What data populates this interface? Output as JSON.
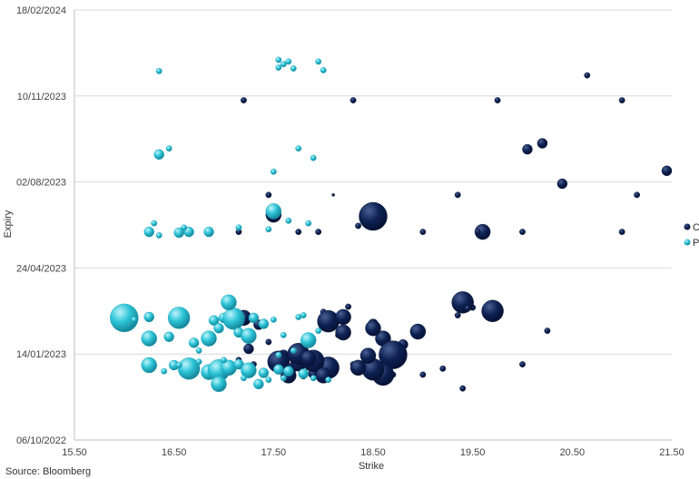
{
  "chart_data": {
    "type": "scatter",
    "xlabel": "Strike",
    "ylabel": "Expiry",
    "xlim": [
      15.5,
      21.5
    ],
    "x_ticks": [
      "15.50",
      "16.50",
      "17.50",
      "18.50",
      "19.50",
      "20.50",
      "21.50"
    ],
    "y_ticks": [
      "06/10/2022",
      "14/01/2023",
      "24/04/2023",
      "02/08/2023",
      "10/11/2023",
      "18/02/2024"
    ],
    "grid": "horizontal",
    "legend_position": "right",
    "colors": {
      "C": "#0d2152",
      "P": "#2ec5d8"
    },
    "series": [
      {
        "name": "C",
        "points": [
          {
            "x": 17.15,
            "y": "07/01/2023",
            "size": 2
          },
          {
            "x": 17.25,
            "y": "20/01/2023",
            "size": 3
          },
          {
            "x": 17.3,
            "y": "02/01/2023",
            "size": 2
          },
          {
            "x": 17.35,
            "y": "17/02/2023",
            "size": 3
          },
          {
            "x": 17.45,
            "y": "28/01/2023",
            "size": 2
          },
          {
            "x": 17.5,
            "y": "12/01/2023",
            "size": 2
          },
          {
            "x": 17.55,
            "y": "30/12/2022",
            "size": 2
          },
          {
            "x": 17.6,
            "y": "13/01/2023",
            "size": 3
          },
          {
            "x": 17.7,
            "y": "30/12/2022",
            "size": 3
          },
          {
            "x": 17.75,
            "y": "03/01/2023",
            "size": 4
          },
          {
            "x": 17.8,
            "y": "19/12/2022",
            "size": 2
          },
          {
            "x": 17.8,
            "y": "07/01/2023",
            "size": 3
          },
          {
            "x": 17.85,
            "y": "31/12/2022",
            "size": 2
          },
          {
            "x": 17.9,
            "y": "22/12/2022",
            "size": 3
          },
          {
            "x": 17.95,
            "y": "25/12/2022",
            "size": 2
          },
          {
            "x": 18.0,
            "y": "04/03/2023",
            "size": 2
          },
          {
            "x": 18.05,
            "y": "26/12/2022",
            "size": 3
          },
          {
            "x": 18.1,
            "y": "15/02/2023",
            "size": 2
          },
          {
            "x": 18.15,
            "y": "05/02/2023",
            "size": 2
          },
          {
            "x": 18.25,
            "y": "10/03/2023",
            "size": 2
          },
          {
            "x": 18.3,
            "y": "02/01/2023",
            "size": 2
          },
          {
            "x": 18.4,
            "y": "03/01/2023",
            "size": 2
          },
          {
            "x": 18.45,
            "y": "25/12/2022",
            "size": 3
          },
          {
            "x": 18.5,
            "y": "18/02/2023",
            "size": 3
          },
          {
            "x": 18.6,
            "y": "01/02/2023",
            "size": 4
          },
          {
            "x": 18.65,
            "y": "02/01/2023",
            "size": 2
          },
          {
            "x": 18.7,
            "y": "21/12/2022",
            "size": 2
          },
          {
            "x": 18.75,
            "y": "16/01/2023",
            "size": 2
          },
          {
            "x": 18.8,
            "y": "25/01/2023",
            "size": 3
          },
          {
            "x": 19.0,
            "y": "21/12/2022",
            "size": 2
          },
          {
            "x": 19.2,
            "y": "28/12/2022",
            "size": 2
          },
          {
            "x": 19.35,
            "y": "28/02/2023",
            "size": 2
          },
          {
            "x": 19.4,
            "y": "05/12/2022",
            "size": 2
          },
          {
            "x": 19.5,
            "y": "09/03/2023",
            "size": 2
          },
          {
            "x": 20.0,
            "y": "02/01/2023",
            "size": 2
          },
          {
            "x": 20.25,
            "y": "10/02/2023",
            "size": 2
          },
          {
            "x": 17.55,
            "y": "05/01/2023",
            "size": 5
          },
          {
            "x": 17.75,
            "y": "14/01/2023",
            "size": 5
          },
          {
            "x": 18.05,
            "y": "21/02/2023",
            "size": 5
          },
          {
            "x": 18.7,
            "y": "13/01/2023",
            "size": 6
          },
          {
            "x": 18.6,
            "y": "21/12/2022",
            "size": 5
          },
          {
            "x": 18.05,
            "y": "29/12/2022",
            "size": 5
          },
          {
            "x": 17.9,
            "y": "06/01/2023",
            "size": 5
          },
          {
            "x": 17.2,
            "y": "25/02/2023",
            "size": 4
          },
          {
            "x": 18.5,
            "y": "27/12/2022",
            "size": 5
          },
          {
            "x": 18.45,
            "y": "12/01/2023",
            "size": 4
          },
          {
            "x": 18.95,
            "y": "09/02/2023",
            "size": 4
          },
          {
            "x": 18.2,
            "y": "26/02/2023",
            "size": 4
          },
          {
            "x": 18.2,
            "y": "08/02/2023",
            "size": 4
          },
          {
            "x": 18.0,
            "y": "20/12/2022",
            "size": 4
          },
          {
            "x": 17.65,
            "y": "20/12/2022",
            "size": 4
          },
          {
            "x": 17.85,
            "y": "09/01/2023",
            "size": 4
          },
          {
            "x": 18.35,
            "y": "29/12/2022",
            "size": 4
          },
          {
            "x": 18.5,
            "y": "13/02/2023",
            "size": 4
          },
          {
            "x": 19.4,
            "y": "15/03/2023",
            "size": 5
          },
          {
            "x": 19.7,
            "y": "05/03/2023",
            "size": 5
          },
          {
            "x": 19.45,
            "y": "08/03/2023",
            "size": 2
          },
          {
            "x": 18.5,
            "y": "23/06/2023",
            "size": 6
          },
          {
            "x": 17.5,
            "y": "25/06/2023",
            "size": 4
          },
          {
            "x": 19.6,
            "y": "05/06/2023",
            "size": 4
          },
          {
            "x": 18.35,
            "y": "12/06/2023",
            "size": 2
          },
          {
            "x": 17.15,
            "y": "05/06/2023",
            "size": 2
          },
          {
            "x": 17.75,
            "y": "05/06/2023",
            "size": 2
          },
          {
            "x": 17.95,
            "y": "05/06/2023",
            "size": 2
          },
          {
            "x": 19.0,
            "y": "05/06/2023",
            "size": 2
          },
          {
            "x": 19.55,
            "y": "05/06/2023",
            "size": 2
          },
          {
            "x": 20.0,
            "y": "05/06/2023",
            "size": 2
          },
          {
            "x": 21.0,
            "y": "05/06/2023",
            "size": 2
          },
          {
            "x": 17.45,
            "y": "18/07/2023",
            "size": 2
          },
          {
            "x": 18.1,
            "y": "18/07/2023",
            "size": 1
          },
          {
            "x": 19.35,
            "y": "18/07/2023",
            "size": 2
          },
          {
            "x": 21.15,
            "y": "18/07/2023",
            "size": 2
          },
          {
            "x": 20.4,
            "y": "31/07/2023",
            "size": 3
          },
          {
            "x": 21.45,
            "y": "15/08/2023",
            "size": 3
          },
          {
            "x": 20.05,
            "y": "09/09/2023",
            "size": 3
          },
          {
            "x": 20.2,
            "y": "16/09/2023",
            "size": 3
          },
          {
            "x": 17.2,
            "y": "05/11/2023",
            "size": 2
          },
          {
            "x": 18.3,
            "y": "05/11/2023",
            "size": 2
          },
          {
            "x": 19.75,
            "y": "05/11/2023",
            "size": 2
          },
          {
            "x": 21.0,
            "y": "05/11/2023",
            "size": 2
          },
          {
            "x": 20.65,
            "y": "04/12/2023",
            "size": 2
          }
        ]
      },
      {
        "name": "P",
        "points": [
          {
            "x": 16.0,
            "y": "25/02/2023",
            "size": 6
          },
          {
            "x": 16.25,
            "y": "26/02/2023",
            "size": 3
          },
          {
            "x": 16.55,
            "y": "25/02/2023",
            "size": 5
          },
          {
            "x": 16.9,
            "y": "22/02/2023",
            "size": 3
          },
          {
            "x": 17.0,
            "y": "25/02/2023",
            "size": 3
          },
          {
            "x": 17.1,
            "y": "24/02/2023",
            "size": 5
          },
          {
            "x": 17.3,
            "y": "25/02/2023",
            "size": 3
          },
          {
            "x": 17.5,
            "y": "23/02/2023",
            "size": 2
          },
          {
            "x": 17.75,
            "y": "26/02/2023",
            "size": 2
          },
          {
            "x": 17.05,
            "y": "15/03/2023",
            "size": 4
          },
          {
            "x": 16.1,
            "y": "23/02/2023",
            "size": 2
          },
          {
            "x": 16.25,
            "y": "01/02/2023",
            "size": 4
          },
          {
            "x": 16.45,
            "y": "03/02/2023",
            "size": 3
          },
          {
            "x": 16.85,
            "y": "01/02/2023",
            "size": 4
          },
          {
            "x": 16.95,
            "y": "13/02/2023",
            "size": 3
          },
          {
            "x": 17.15,
            "y": "08/02/2023",
            "size": 3
          },
          {
            "x": 17.25,
            "y": "04/02/2023",
            "size": 4
          },
          {
            "x": 17.4,
            "y": "18/02/2023",
            "size": 3
          },
          {
            "x": 17.6,
            "y": "05/02/2023",
            "size": 2
          },
          {
            "x": 17.8,
            "y": "28/02/2023",
            "size": 2
          },
          {
            "x": 16.7,
            "y": "27/01/2023",
            "size": 3
          },
          {
            "x": 17.95,
            "y": "10/02/2023",
            "size": 2
          },
          {
            "x": 17.85,
            "y": "30/01/2023",
            "size": 4
          },
          {
            "x": 16.25,
            "y": "01/01/2023",
            "size": 4
          },
          {
            "x": 16.5,
            "y": "01/01/2023",
            "size": 3
          },
          {
            "x": 16.65,
            "y": "28/12/2022",
            "size": 5
          },
          {
            "x": 16.85,
            "y": "24/12/2022",
            "size": 4
          },
          {
            "x": 16.95,
            "y": "26/12/2022",
            "size": 5
          },
          {
            "x": 17.05,
            "y": "29/12/2022",
            "size": 4
          },
          {
            "x": 17.15,
            "y": "02/01/2023",
            "size": 3
          },
          {
            "x": 17.25,
            "y": "26/12/2022",
            "size": 4
          },
          {
            "x": 17.4,
            "y": "23/12/2022",
            "size": 3
          },
          {
            "x": 17.55,
            "y": "27/12/2022",
            "size": 3
          },
          {
            "x": 17.65,
            "y": "25/12/2022",
            "size": 3
          },
          {
            "x": 17.8,
            "y": "22/12/2022",
            "size": 3
          },
          {
            "x": 17.35,
            "y": "10/12/2022",
            "size": 3
          },
          {
            "x": 16.95,
            "y": "10/12/2022",
            "size": 4
          },
          {
            "x": 16.55,
            "y": "01/01/2023",
            "size": 2
          },
          {
            "x": 16.75,
            "y": "18/01/2023",
            "size": 2
          },
          {
            "x": 17.0,
            "y": "07/01/2023",
            "size": 2
          },
          {
            "x": 17.55,
            "y": "13/01/2023",
            "size": 2
          },
          {
            "x": 17.7,
            "y": "18/01/2023",
            "size": 2
          },
          {
            "x": 16.4,
            "y": "25/12/2022",
            "size": 2
          },
          {
            "x": 17.2,
            "y": "17/12/2022",
            "size": 2
          },
          {
            "x": 17.45,
            "y": "15/12/2022",
            "size": 2
          },
          {
            "x": 17.6,
            "y": "17/12/2022",
            "size": 2
          },
          {
            "x": 17.9,
            "y": "17/12/2022",
            "size": 2
          },
          {
            "x": 18.05,
            "y": "15/12/2022",
            "size": 2
          },
          {
            "x": 16.75,
            "y": "05/01/2023",
            "size": 2
          },
          {
            "x": 16.25,
            "y": "05/06/2023",
            "size": 3
          },
          {
            "x": 16.35,
            "y": "01/06/2023",
            "size": 2
          },
          {
            "x": 16.55,
            "y": "04/06/2023",
            "size": 3
          },
          {
            "x": 16.65,
            "y": "05/06/2023",
            "size": 3
          },
          {
            "x": 16.85,
            "y": "05/06/2023",
            "size": 3
          },
          {
            "x": 16.3,
            "y": "15/06/2023",
            "size": 2
          },
          {
            "x": 16.6,
            "y": "10/06/2023",
            "size": 2
          },
          {
            "x": 17.15,
            "y": "10/06/2023",
            "size": 2
          },
          {
            "x": 17.45,
            "y": "08/06/2023",
            "size": 2
          },
          {
            "x": 17.65,
            "y": "18/06/2023",
            "size": 2
          },
          {
            "x": 17.85,
            "y": "15/06/2023",
            "size": 2
          },
          {
            "x": 17.5,
            "y": "29/06/2023",
            "size": 4
          },
          {
            "x": 17.5,
            "y": "14/08/2023",
            "size": 2
          },
          {
            "x": 16.35,
            "y": "03/09/2023",
            "size": 3
          },
          {
            "x": 16.45,
            "y": "10/09/2023",
            "size": 2
          },
          {
            "x": 17.75,
            "y": "10/09/2023",
            "size": 2
          },
          {
            "x": 17.9,
            "y": "30/08/2023",
            "size": 2
          },
          {
            "x": 16.35,
            "y": "09/12/2023",
            "size": 2
          },
          {
            "x": 17.55,
            "y": "13/12/2023",
            "size": 2
          },
          {
            "x": 17.6,
            "y": "17/12/2023",
            "size": 2
          },
          {
            "x": 17.7,
            "y": "12/12/2023",
            "size": 2
          },
          {
            "x": 17.55,
            "y": "22/12/2023",
            "size": 2
          },
          {
            "x": 17.65,
            "y": "20/12/2023",
            "size": 2
          },
          {
            "x": 17.95,
            "y": "20/12/2023",
            "size": 2
          },
          {
            "x": 18.0,
            "y": "10/12/2023",
            "size": 2
          }
        ]
      }
    ]
  },
  "legend": [
    {
      "label": "C",
      "color": "#0d2152"
    },
    {
      "label": "P",
      "color": "#2ec5d8"
    }
  ],
  "source": "Source: Bloomberg"
}
